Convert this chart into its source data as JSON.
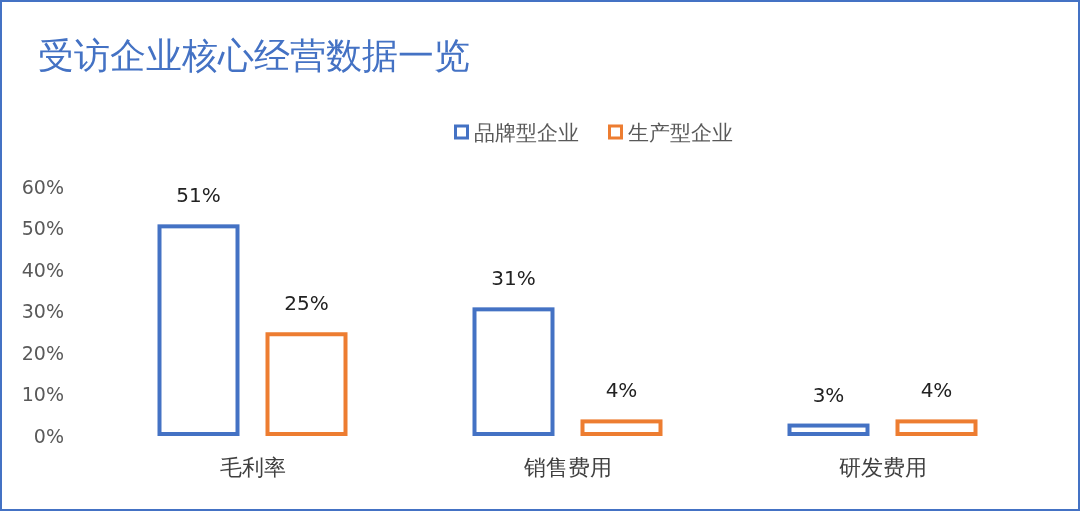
{
  "chart_data": {
    "type": "bar",
    "title": "受访企业核心经营数据一览",
    "categories": [
      "毛利率",
      "销售费用",
      "研发费用"
    ],
    "series": [
      {
        "name": "品牌型企业",
        "color": "#4472c4",
        "values": [
          51,
          31,
          3
        ]
      },
      {
        "name": "生产型企业",
        "color": "#ed7d31",
        "values": [
          25,
          4,
          4
        ]
      }
    ],
    "ylim": [
      0,
      60
    ],
    "yticks": [
      {
        "value": 0,
        "label": "0%"
      },
      {
        "value": 10,
        "label": "10%"
      },
      {
        "value": 20,
        "label": "20%"
      },
      {
        "value": 30,
        "label": "30%"
      },
      {
        "value": 40,
        "label": "40%"
      },
      {
        "value": 50,
        "label": "50%"
      },
      {
        "value": 60,
        "label": "60%"
      }
    ],
    "value_labels": [
      [
        "51%",
        "31%",
        "3%"
      ],
      [
        "25%",
        "4%",
        "4%"
      ]
    ],
    "grid": false,
    "legend": "top"
  }
}
